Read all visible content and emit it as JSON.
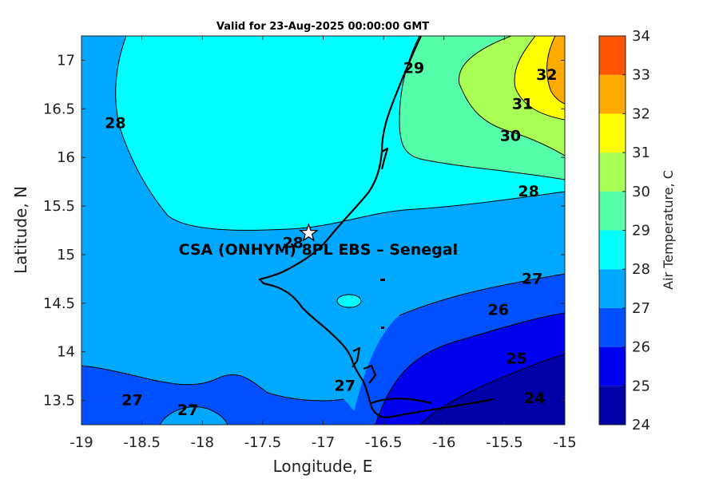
{
  "title": "Valid for 23-Aug-2025 00:00:00 GMT",
  "site_label": "CSA (ONHYM) 8PL EBS  – Senegal",
  "chart_data": {
    "type": "contour-map",
    "x_axis": {
      "label": "Longitude, E",
      "range": [
        -19,
        -15
      ],
      "ticks": [
        -19,
        -18.5,
        -18,
        -17.5,
        -17,
        -16.5,
        -16,
        -15.5,
        -15
      ]
    },
    "y_axis": {
      "label": "Latitude, N",
      "range": [
        13.25,
        17.25
      ],
      "ticks": [
        13.5,
        14,
        14.5,
        15,
        15.5,
        16,
        16.5,
        17
      ]
    },
    "colorbar": {
      "label": "Air Temperature, C",
      "levels": [
        24,
        25,
        26,
        27,
        28,
        29,
        30,
        31,
        32,
        33,
        34
      ],
      "colors": [
        "#0000a8",
        "#0000f0",
        "#0050ff",
        "#00a8ff",
        "#00ffff",
        "#55ffaa",
        "#aaff55",
        "#ffff00",
        "#ffaa00",
        "#ff5500",
        "#ff0000"
      ]
    },
    "site": {
      "lon": -17.12,
      "lat": 15.22,
      "marker": "star"
    },
    "contour_labels": [
      {
        "text": "28",
        "lon": -18.72,
        "lat": 16.3
      },
      {
        "text": "29",
        "lon": -16.25,
        "lat": 16.87
      },
      {
        "text": "32",
        "lon": -15.15,
        "lat": 16.8
      },
      {
        "text": "31",
        "lon": -15.35,
        "lat": 16.5
      },
      {
        "text": "30",
        "lon": -15.45,
        "lat": 16.17
      },
      {
        "text": "28",
        "lon": -15.3,
        "lat": 15.6
      },
      {
        "text": "28",
        "lon": -17.25,
        "lat": 15.07
      },
      {
        "text": "27",
        "lon": -15.27,
        "lat": 14.7
      },
      {
        "text": "26",
        "lon": -15.55,
        "lat": 14.38
      },
      {
        "text": "25",
        "lon": -15.4,
        "lat": 13.88
      },
      {
        "text": "24",
        "lon": -15.25,
        "lat": 13.47
      },
      {
        "text": "27",
        "lon": -18.58,
        "lat": 13.45
      },
      {
        "text": "27",
        "lon": -18.12,
        "lat": 13.35
      },
      {
        "text": "27",
        "lon": -16.82,
        "lat": 13.6
      }
    ]
  }
}
